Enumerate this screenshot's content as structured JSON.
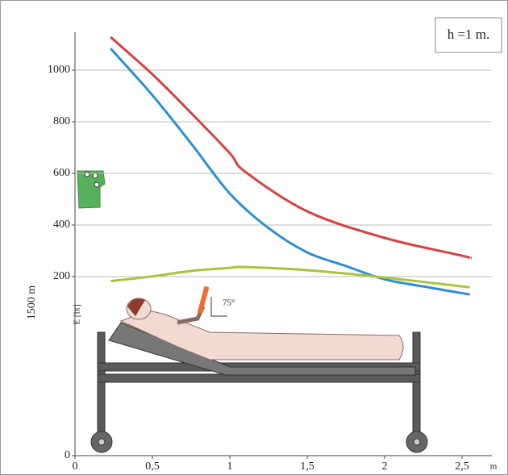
{
  "chart_data": {
    "type": "line",
    "legend_box": "h =1 m.",
    "y_label": "E [lx]",
    "side_label": "1500 m",
    "x_unit": "m",
    "annotation": "75°",
    "xlim": [
      0,
      2.75
    ],
    "ylim": [
      0,
      1150
    ],
    "ybreak": [
      0,
      200
    ],
    "xticks": [
      0,
      {
        "value": 0.5,
        "label": "0,5"
      },
      1,
      {
        "value": 1.5,
        "label": "1,5"
      },
      2,
      {
        "value": 2.5,
        "label": "2,5"
      }
    ],
    "yticks": [
      0,
      200,
      400,
      600,
      800,
      1000
    ],
    "grid": true,
    "series": [
      {
        "color": "#d9413f",
        "x": [
          0.23,
          0.5,
          0.75,
          1,
          1.1,
          1.5,
          2,
          2.5,
          2.55
        ],
        "values": [
          1128,
          984,
          834,
          678,
          606,
          453,
          350,
          281,
          272
        ]
      },
      {
        "color": "#2b8fd6",
        "x": [
          0.23,
          0.5,
          0.75,
          1,
          1.25,
          1.5,
          1.75,
          2,
          2.25,
          2.55
        ],
        "values": [
          1084,
          903,
          716,
          522,
          388,
          294,
          241,
          197,
          189,
          180
        ]
      },
      {
        "color": "#a9c43b",
        "x": [
          0.23,
          0.5,
          0.75,
          1,
          1.1,
          1.5,
          2,
          2.55
        ],
        "values": [
          195,
          201,
          222,
          234,
          237,
          225,
          199,
          188
        ]
      }
    ]
  }
}
